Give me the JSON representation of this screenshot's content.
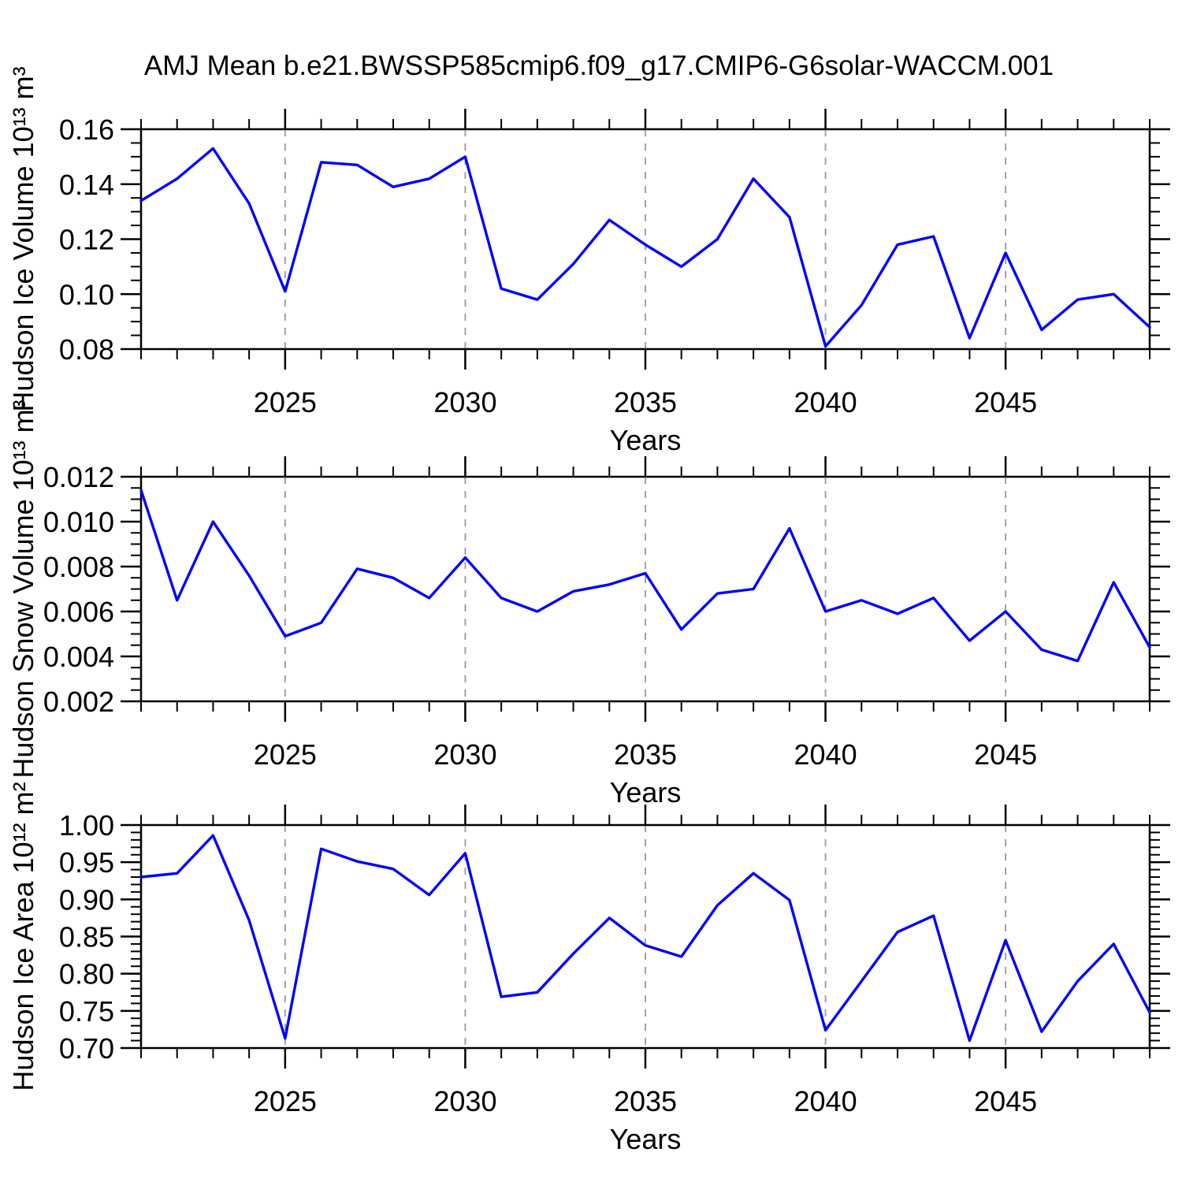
{
  "title": "AMJ Mean b.e21.BWSSP585cmip6.f09_g17.CMIP6-G6solar-WACCM.001",
  "figure": {
    "background": "#ffffff",
    "line_color": "#0000ff",
    "frame_color": "#000000",
    "grid_color": "#999999"
  },
  "chart_data": [
    {
      "type": "line",
      "ylabel": "Hudson Ice Volume 10¹³ m³",
      "xlabel": "Years",
      "xlim": [
        2021,
        2049
      ],
      "ylim": [
        0.08,
        0.16
      ],
      "x_major_ticks": [
        2025,
        2030,
        2035,
        2040,
        2045
      ],
      "x_tick_labels": [
        "2025",
        "2030",
        "2035",
        "2040",
        "2045"
      ],
      "x_minor_step": 1,
      "y_tick_labels": [
        "0.08",
        "0.10",
        "0.12",
        "0.14",
        "0.16"
      ],
      "y_major_ticks": [
        0.08,
        0.1,
        0.12,
        0.14,
        0.16
      ],
      "y_minor_step": 0.005,
      "grid": "vertical-dashed",
      "legend": "none",
      "x": [
        2021,
        2022,
        2023,
        2024,
        2025,
        2026,
        2027,
        2028,
        2029,
        2030,
        2031,
        2032,
        2033,
        2034,
        2035,
        2036,
        2037,
        2038,
        2039,
        2040,
        2041,
        2042,
        2043,
        2044,
        2045,
        2046,
        2047,
        2048,
        2049
      ],
      "values": [
        0.134,
        0.142,
        0.153,
        0.133,
        0.101,
        0.148,
        0.147,
        0.139,
        0.142,
        0.15,
        0.102,
        0.098,
        0.111,
        0.127,
        0.118,
        0.11,
        0.12,
        0.142,
        0.128,
        0.081,
        0.096,
        0.118,
        0.121,
        0.084,
        0.115,
        0.087,
        0.098,
        0.1,
        0.088
      ]
    },
    {
      "type": "line",
      "ylabel": "Hudson Snow Volume 10¹³ m³",
      "xlabel": "Years",
      "xlim": [
        2021,
        2049
      ],
      "ylim": [
        0.002,
        0.012
      ],
      "x_major_ticks": [
        2025,
        2030,
        2035,
        2040,
        2045
      ],
      "x_tick_labels": [
        "2025",
        "2030",
        "2035",
        "2040",
        "2045"
      ],
      "x_minor_step": 1,
      "y_tick_labels": [
        "0.002",
        "0.004",
        "0.006",
        "0.008",
        "0.010",
        "0.012"
      ],
      "y_major_ticks": [
        0.002,
        0.004,
        0.006,
        0.008,
        0.01,
        0.012
      ],
      "y_minor_step": 0.0005,
      "grid": "vertical-dashed",
      "legend": "none",
      "x": [
        2021,
        2022,
        2023,
        2024,
        2025,
        2026,
        2027,
        2028,
        2029,
        2030,
        2031,
        2032,
        2033,
        2034,
        2035,
        2036,
        2037,
        2038,
        2039,
        2040,
        2041,
        2042,
        2043,
        2044,
        2045,
        2046,
        2047,
        2048,
        2049
      ],
      "values": [
        0.0114,
        0.0065,
        0.01,
        0.0076,
        0.0049,
        0.0055,
        0.0079,
        0.0075,
        0.0066,
        0.0084,
        0.0066,
        0.006,
        0.0069,
        0.0072,
        0.0077,
        0.0052,
        0.0068,
        0.007,
        0.0097,
        0.006,
        0.0065,
        0.0059,
        0.0066,
        0.0047,
        0.006,
        0.0043,
        0.0038,
        0.0073,
        0.0044
      ]
    },
    {
      "type": "line",
      "ylabel": "Hudson Ice Area 10¹² m²",
      "xlabel": "Years",
      "xlim": [
        2021,
        2049
      ],
      "ylim": [
        0.7,
        1.0
      ],
      "x_major_ticks": [
        2025,
        2030,
        2035,
        2040,
        2045
      ],
      "x_tick_labels": [
        "2025",
        "2030",
        "2035",
        "2040",
        "2045"
      ],
      "x_minor_step": 1,
      "y_tick_labels": [
        "0.70",
        "0.75",
        "0.80",
        "0.85",
        "0.90",
        "0.95",
        "1.00"
      ],
      "y_major_ticks": [
        0.7,
        0.75,
        0.8,
        0.85,
        0.9,
        0.95,
        1.0
      ],
      "y_minor_step": 0.01,
      "grid": "vertical-dashed",
      "legend": "none",
      "x": [
        2021,
        2022,
        2023,
        2024,
        2025,
        2026,
        2027,
        2028,
        2029,
        2030,
        2031,
        2032,
        2033,
        2034,
        2035,
        2036,
        2037,
        2038,
        2039,
        2040,
        2041,
        2042,
        2043,
        2044,
        2045,
        2046,
        2047,
        2048,
        2049
      ],
      "values": [
        0.93,
        0.935,
        0.986,
        0.872,
        0.713,
        0.968,
        0.951,
        0.941,
        0.906,
        0.962,
        0.769,
        0.775,
        0.827,
        0.875,
        0.838,
        0.823,
        0.892,
        0.935,
        0.899,
        0.724,
        0.79,
        0.856,
        0.878,
        0.71,
        0.845,
        0.722,
        0.79,
        0.84,
        0.748
      ]
    }
  ]
}
